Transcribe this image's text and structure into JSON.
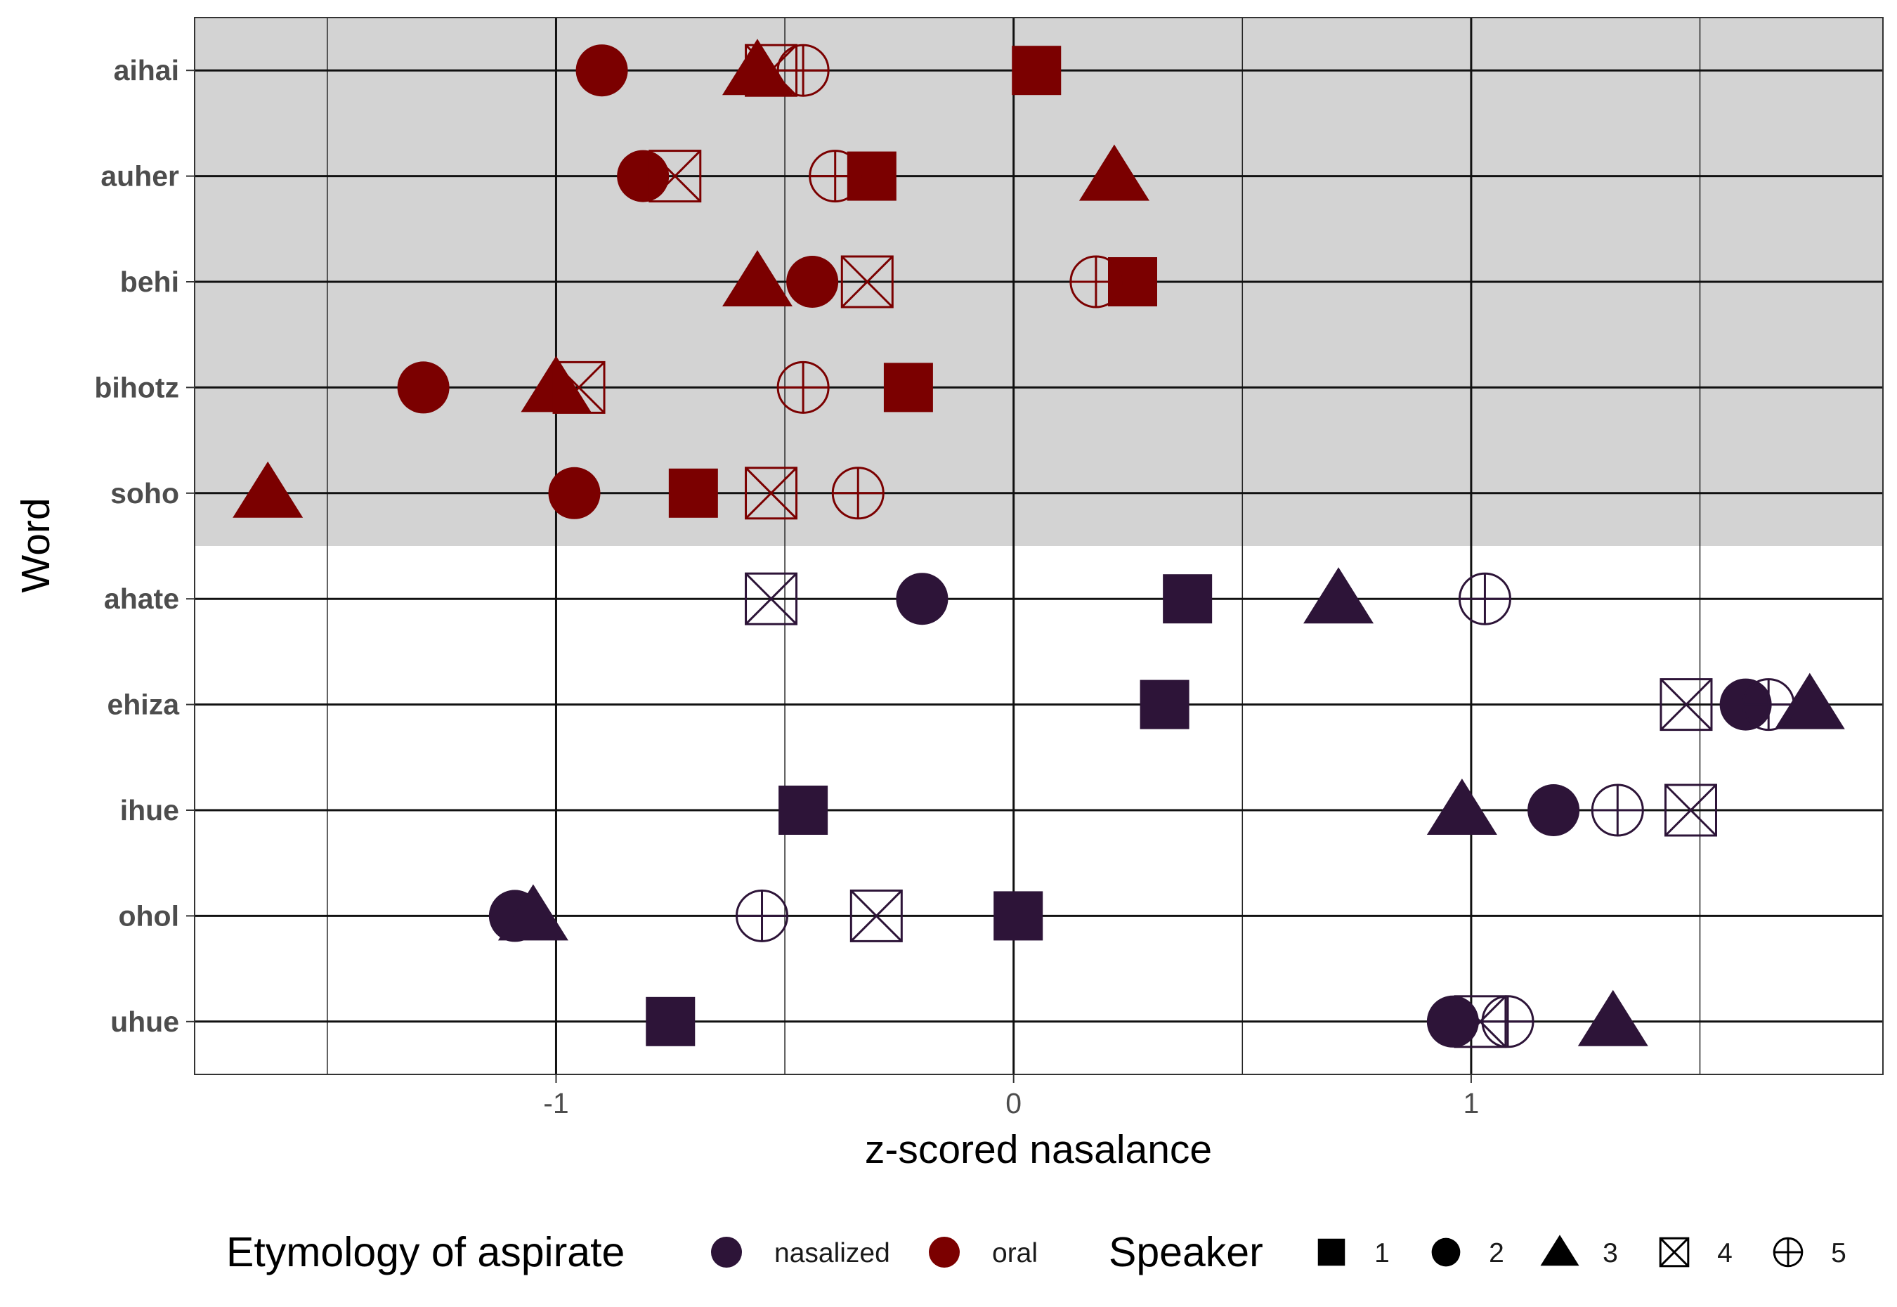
{
  "chart_data": {
    "type": "scatter",
    "xlabel": "z-scored nasalance",
    "ylabel": "Word",
    "xlim": [
      -1.79,
      1.9
    ],
    "x_ticks": [
      -1,
      0,
      1
    ],
    "x_tick_labels": [
      "-1",
      "0",
      "1"
    ],
    "categories": [
      "aihai",
      "auher",
      "behi",
      "bihotz",
      "soho",
      "ahate",
      "ehiza",
      "ihue",
      "ohol",
      "uhue"
    ],
    "shaded_categories": [
      "aihai",
      "auher",
      "behi",
      "bihotz",
      "soho"
    ],
    "colors": {
      "nasalized": "#2d1438",
      "oral": "#7b0000",
      "shade": "#d3d3d3"
    },
    "grid": true,
    "legend_position": "bottom",
    "legends": {
      "color": {
        "title": "Etymology of aspirate",
        "entries": [
          {
            "key": "nasalized",
            "label": "nasalized"
          },
          {
            "key": "oral",
            "label": "oral"
          }
        ]
      },
      "shape": {
        "title": "Speaker",
        "entries": [
          {
            "speaker": 1,
            "label": "1",
            "shape": "filled-square"
          },
          {
            "speaker": 2,
            "label": "2",
            "shape": "filled-circle"
          },
          {
            "speaker": 3,
            "label": "3",
            "shape": "filled-triangle"
          },
          {
            "speaker": 4,
            "label": "4",
            "shape": "square-cross"
          },
          {
            "speaker": 5,
            "label": "5",
            "shape": "circle-plus"
          }
        ]
      }
    },
    "series": [
      {
        "word": "aihai",
        "etymology": "oral",
        "points": [
          {
            "speaker": 1,
            "x": 0.05
          },
          {
            "speaker": 2,
            "x": -0.9
          },
          {
            "speaker": 3,
            "x": -0.56
          },
          {
            "speaker": 4,
            "x": -0.53
          },
          {
            "speaker": 5,
            "x": -0.46
          }
        ]
      },
      {
        "word": "auher",
        "etymology": "oral",
        "points": [
          {
            "speaker": 1,
            "x": -0.31
          },
          {
            "speaker": 2,
            "x": -0.81
          },
          {
            "speaker": 3,
            "x": 0.22
          },
          {
            "speaker": 4,
            "x": -0.74
          },
          {
            "speaker": 5,
            "x": -0.39
          }
        ]
      },
      {
        "word": "behi",
        "etymology": "oral",
        "points": [
          {
            "speaker": 1,
            "x": 0.26
          },
          {
            "speaker": 2,
            "x": -0.44
          },
          {
            "speaker": 3,
            "x": -0.56
          },
          {
            "speaker": 4,
            "x": -0.32
          },
          {
            "speaker": 5,
            "x": 0.18
          }
        ]
      },
      {
        "word": "bihotz",
        "etymology": "oral",
        "points": [
          {
            "speaker": 1,
            "x": -0.23
          },
          {
            "speaker": 2,
            "x": -1.29
          },
          {
            "speaker": 3,
            "x": -1.0
          },
          {
            "speaker": 4,
            "x": -0.95
          },
          {
            "speaker": 5,
            "x": -0.46
          }
        ]
      },
      {
        "word": "soho",
        "etymology": "oral",
        "points": [
          {
            "speaker": 1,
            "x": -0.7
          },
          {
            "speaker": 2,
            "x": -0.96
          },
          {
            "speaker": 3,
            "x": -1.63
          },
          {
            "speaker": 4,
            "x": -0.53
          },
          {
            "speaker": 5,
            "x": -0.34
          }
        ]
      },
      {
        "word": "ahate",
        "etymology": "nasalized",
        "points": [
          {
            "speaker": 1,
            "x": 0.38
          },
          {
            "speaker": 2,
            "x": -0.2
          },
          {
            "speaker": 3,
            "x": 0.71
          },
          {
            "speaker": 4,
            "x": -0.53
          },
          {
            "speaker": 5,
            "x": 1.03
          }
        ]
      },
      {
        "word": "ehiza",
        "etymology": "nasalized",
        "points": [
          {
            "speaker": 1,
            "x": 0.33
          },
          {
            "speaker": 2,
            "x": 1.6
          },
          {
            "speaker": 3,
            "x": 1.74
          },
          {
            "speaker": 4,
            "x": 1.47
          },
          {
            "speaker": 5,
            "x": 1.65
          }
        ]
      },
      {
        "word": "ihue",
        "etymology": "nasalized",
        "points": [
          {
            "speaker": 1,
            "x": -0.46
          },
          {
            "speaker": 2,
            "x": 1.18
          },
          {
            "speaker": 3,
            "x": 0.98
          },
          {
            "speaker": 4,
            "x": 1.48
          },
          {
            "speaker": 5,
            "x": 1.32
          }
        ]
      },
      {
        "word": "ohol",
        "etymology": "nasalized",
        "points": [
          {
            "speaker": 1,
            "x": 0.01
          },
          {
            "speaker": 2,
            "x": -1.09
          },
          {
            "speaker": 3,
            "x": -1.05
          },
          {
            "speaker": 4,
            "x": -0.3
          },
          {
            "speaker": 5,
            "x": -0.55
          }
        ]
      },
      {
        "word": "uhue",
        "etymology": "nasalized",
        "points": [
          {
            "speaker": 1,
            "x": -0.75
          },
          {
            "speaker": 2,
            "x": 0.96
          },
          {
            "speaker": 3,
            "x": 1.31
          },
          {
            "speaker": 4,
            "x": 1.02
          },
          {
            "speaker": 5,
            "x": 1.08
          }
        ]
      }
    ]
  }
}
